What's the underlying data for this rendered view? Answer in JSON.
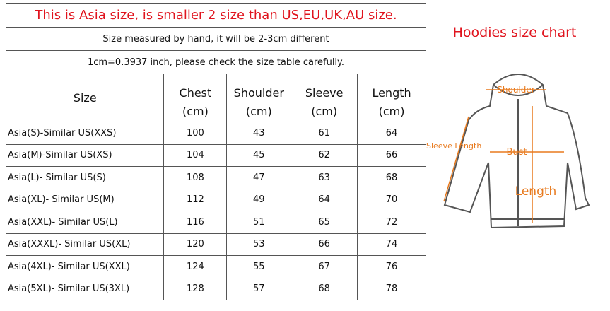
{
  "notice": {
    "headline": "This is Asia size, is smaller 2 size than US,EU,UK,AU size.",
    "note1": "Size measured by hand, it will be 2-3cm different",
    "note2": "1cm=0.3937 inch, please check the size table carefully."
  },
  "table": {
    "header": [
      "Size",
      "Chest",
      "Shoulder",
      "Sleeve",
      "Length"
    ],
    "units": [
      "(cm)",
      "(cm)",
      "(cm)",
      "(cm)"
    ],
    "rows": [
      [
        "Asia(S)-Similar US(XXS)",
        100,
        43,
        61,
        64
      ],
      [
        "Asia(M)-Similar US(XS)",
        104,
        45,
        62,
        66
      ],
      [
        "Asia(L)- Similar US(S)",
        108,
        47,
        63,
        68
      ],
      [
        "Asia(XL)- Similar US(M)",
        112,
        49,
        64,
        70
      ],
      [
        "Asia(XXL)- Similar US(L)",
        116,
        51,
        65,
        72
      ],
      [
        "Asia(XXXL)- Similar US(XL)",
        120,
        53,
        66,
        74
      ],
      [
        "Asia(4XL)- Similar US(XXL)",
        124,
        55,
        67,
        76
      ],
      [
        "Asia(5XL)- Similar US(3XL)",
        128,
        57,
        68,
        78
      ]
    ]
  },
  "figure": {
    "title": "Hoodies size chart",
    "labels": {
      "shoulder": "Shoulder",
      "sleeve": "Sleeve Length",
      "bust": "Bust",
      "length": "Length"
    }
  }
}
